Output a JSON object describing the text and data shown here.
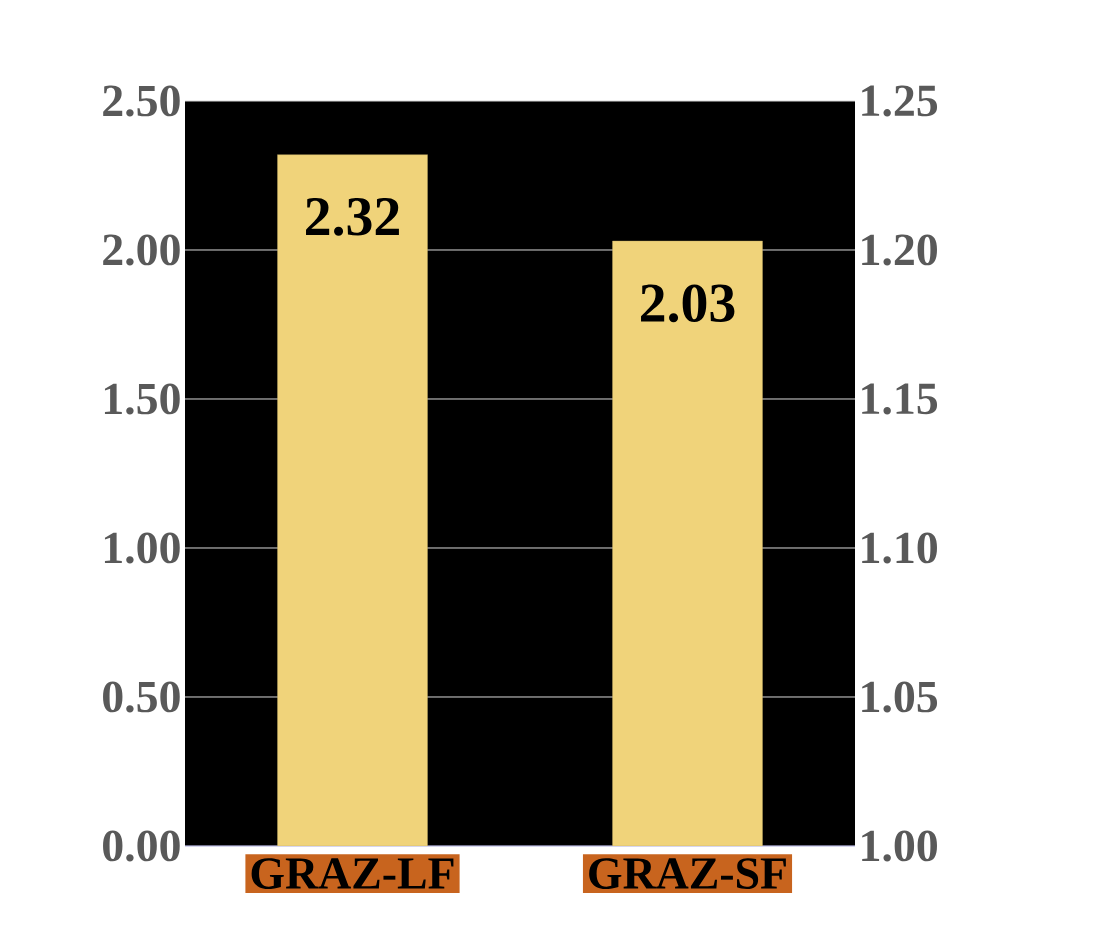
{
  "chart_data": {
    "type": "bar",
    "categories": [
      "GRAZ-LF",
      "GRAZ-SF"
    ],
    "values": [
      2.32,
      2.03
    ],
    "color": "#f0d37a",
    "data_labels": true,
    "ylim": [
      0,
      2.5
    ],
    "yticks": [
      {
        "value": 0,
        "label": "0.00"
      },
      {
        "value": 0.5,
        "label": "0.50"
      },
      {
        "value": 1,
        "label": "1.00"
      },
      {
        "value": 1.5,
        "label": "1.50"
      },
      {
        "value": 2,
        "label": "2.00"
      },
      {
        "value": 2.5,
        "label": "2.50"
      }
    ],
    "y2lim": [
      1,
      1.25
    ],
    "y2ticks": [
      {
        "value": 1,
        "label": "1.00"
      },
      {
        "value": 1.05,
        "label": "1.05"
      },
      {
        "value": 1.1,
        "label": "1.10"
      },
      {
        "value": 1.15,
        "label": "1.15"
      },
      {
        "value": 1.2,
        "label": "1.20"
      },
      {
        "value": 1.25,
        "label": "1.25"
      }
    ],
    "grid": "y"
  }
}
